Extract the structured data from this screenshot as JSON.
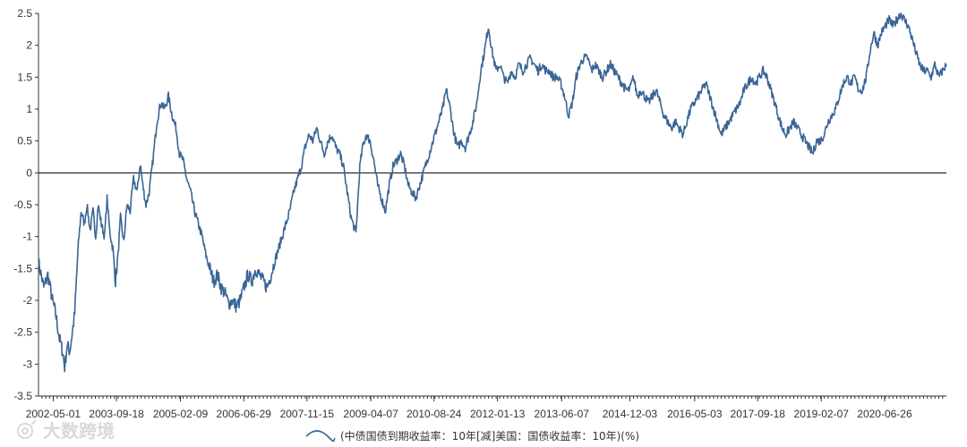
{
  "watermark": "大数跨境",
  "chart_data": {
    "type": "line",
    "title": "",
    "xlabel": "",
    "ylabel": "",
    "ylim": [
      -3.5,
      2.5
    ],
    "y_ticks": [
      "2.5",
      "2",
      "1.5",
      "1",
      "0.5",
      "0",
      "-0.5",
      "-1",
      "-1.5",
      "-2",
      "-2.5",
      "-3",
      "-3.5"
    ],
    "x_ticks": [
      "2002-05-01",
      "2003-09-18",
      "2005-02-09",
      "2006-06-29",
      "2007-11-15",
      "2009-04-07",
      "2010-08-24",
      "2012-01-13",
      "2013-06-07",
      "2014-12-03",
      "2016-05-03",
      "2017-09-18",
      "2019-02-07",
      "2020-06-26"
    ],
    "grid": false,
    "legend": "bottom",
    "zero_line": true,
    "colors": {
      "series": "#3a6595",
      "axis": "#333333"
    },
    "series": [
      {
        "name": "(中债国债到期收益率：10年[减]美国：国债收益率：10年)(%)",
        "points": [
          [
            "2002-01-04",
            -1.4
          ],
          [
            "2002-02-15",
            -1.8
          ],
          [
            "2002-03-20",
            -1.6
          ],
          [
            "2002-04-25",
            -2.0
          ],
          [
            "2002-05-20",
            -2.2
          ],
          [
            "2002-06-20",
            -2.6
          ],
          [
            "2002-07-15",
            -2.8
          ],
          [
            "2002-08-01",
            -3.05
          ],
          [
            "2002-08-20",
            -2.7
          ],
          [
            "2002-09-10",
            -2.8
          ],
          [
            "2002-10-01",
            -2.5
          ],
          [
            "2002-10-20",
            -2.2
          ],
          [
            "2002-11-15",
            -1.2
          ],
          [
            "2002-12-10",
            -0.6
          ],
          [
            "2003-01-05",
            -0.8
          ],
          [
            "2003-01-25",
            -0.5
          ],
          [
            "2003-02-20",
            -0.9
          ],
          [
            "2003-03-15",
            -0.6
          ],
          [
            "2003-04-05",
            -1.0
          ],
          [
            "2003-04-25",
            -0.5
          ],
          [
            "2003-05-20",
            -0.8
          ],
          [
            "2003-06-15",
            -1.0
          ],
          [
            "2003-07-05",
            -0.4
          ],
          [
            "2003-07-25",
            -0.9
          ],
          [
            "2003-08-20",
            -1.2
          ],
          [
            "2003-09-10",
            -1.7
          ],
          [
            "2003-09-30",
            -1.3
          ],
          [
            "2003-10-20",
            -0.7
          ],
          [
            "2003-11-15",
            -1.1
          ],
          [
            "2003-12-10",
            -0.5
          ],
          [
            "2004-01-05",
            -0.6
          ],
          [
            "2004-02-01",
            -0.1
          ],
          [
            "2004-03-01",
            -0.3
          ],
          [
            "2004-03-25",
            0.15
          ],
          [
            "2004-04-15",
            -0.2
          ],
          [
            "2004-05-10",
            -0.5
          ],
          [
            "2004-06-05",
            -0.3
          ],
          [
            "2004-07-05",
            0.2
          ],
          [
            "2004-08-05",
            0.8
          ],
          [
            "2004-09-05",
            1.1
          ],
          [
            "2004-10-05",
            1.0
          ],
          [
            "2004-11-05",
            1.2
          ],
          [
            "2004-12-05",
            0.9
          ],
          [
            "2005-01-05",
            0.7
          ],
          [
            "2005-02-01",
            0.3
          ],
          [
            "2005-03-01",
            0.2
          ],
          [
            "2005-04-01",
            -0.1
          ],
          [
            "2005-05-01",
            -0.3
          ],
          [
            "2005-06-01",
            -0.6
          ],
          [
            "2005-07-01",
            -0.8
          ],
          [
            "2005-08-01",
            -1.0
          ],
          [
            "2005-09-01",
            -1.3
          ],
          [
            "2005-10-01",
            -1.5
          ],
          [
            "2005-11-01",
            -1.7
          ],
          [
            "2005-12-01",
            -1.6
          ],
          [
            "2006-01-01",
            -1.8
          ],
          [
            "2006-02-01",
            -1.9
          ],
          [
            "2006-03-01",
            -2.05
          ],
          [
            "2006-04-01",
            -2.0
          ],
          [
            "2006-05-01",
            -2.1
          ],
          [
            "2006-06-01",
            -2.0
          ],
          [
            "2006-07-01",
            -1.8
          ],
          [
            "2006-08-01",
            -1.6
          ],
          [
            "2006-09-01",
            -1.7
          ],
          [
            "2006-10-01",
            -1.5
          ],
          [
            "2006-11-01",
            -1.6
          ],
          [
            "2006-12-01",
            -1.7
          ],
          [
            "2007-01-01",
            -1.8
          ],
          [
            "2007-02-01",
            -1.6
          ],
          [
            "2007-03-01",
            -1.4
          ],
          [
            "2007-04-01",
            -1.2
          ],
          [
            "2007-05-01",
            -1.0
          ],
          [
            "2007-06-01",
            -0.8
          ],
          [
            "2007-07-01",
            -0.6
          ],
          [
            "2007-08-01",
            -0.3
          ],
          [
            "2007-09-01",
            -0.1
          ],
          [
            "2007-10-01",
            0.1
          ],
          [
            "2007-11-01",
            0.4
          ],
          [
            "2007-12-01",
            0.6
          ],
          [
            "2008-01-01",
            0.5
          ],
          [
            "2008-02-01",
            0.7
          ],
          [
            "2008-03-01",
            0.5
          ],
          [
            "2008-04-01",
            0.3
          ],
          [
            "2008-05-01",
            0.5
          ],
          [
            "2008-06-01",
            0.6
          ],
          [
            "2008-07-01",
            0.4
          ],
          [
            "2008-08-01",
            0.3
          ],
          [
            "2008-09-01",
            0.1
          ],
          [
            "2008-10-01",
            -0.3
          ],
          [
            "2008-11-01",
            -0.7
          ],
          [
            "2008-12-10",
            -0.95
          ],
          [
            "2009-01-10",
            0.1
          ],
          [
            "2009-02-01",
            0.4
          ],
          [
            "2009-03-01",
            0.6
          ],
          [
            "2009-04-01",
            0.5
          ],
          [
            "2009-05-01",
            0.2
          ],
          [
            "2009-06-01",
            -0.2
          ],
          [
            "2009-07-01",
            -0.4
          ],
          [
            "2009-08-01",
            -0.6
          ],
          [
            "2009-09-01",
            -0.2
          ],
          [
            "2009-10-01",
            0.1
          ],
          [
            "2009-11-01",
            0.2
          ],
          [
            "2009-12-01",
            0.3
          ],
          [
            "2010-01-01",
            0.1
          ],
          [
            "2010-02-01",
            -0.2
          ],
          [
            "2010-03-01",
            -0.3
          ],
          [
            "2010-04-01",
            -0.4
          ],
          [
            "2010-05-01",
            -0.2
          ],
          [
            "2010-06-01",
            0.0
          ],
          [
            "2010-07-01",
            0.2
          ],
          [
            "2010-08-01",
            0.4
          ],
          [
            "2010-09-01",
            0.6
          ],
          [
            "2010-10-01",
            0.8
          ],
          [
            "2010-11-01",
            1.0
          ],
          [
            "2010-12-01",
            1.3
          ],
          [
            "2011-01-01",
            1.0
          ],
          [
            "2011-02-01",
            0.6
          ],
          [
            "2011-03-01",
            0.4
          ],
          [
            "2011-04-01",
            0.5
          ],
          [
            "2011-05-01",
            0.4
          ],
          [
            "2011-06-01",
            0.6
          ],
          [
            "2011-07-01",
            0.8
          ],
          [
            "2011-08-01",
            1.1
          ],
          [
            "2011-09-01",
            1.6
          ],
          [
            "2011-10-01",
            1.9
          ],
          [
            "2011-11-01",
            2.3
          ],
          [
            "2011-12-01",
            1.9
          ],
          [
            "2012-01-01",
            1.6
          ],
          [
            "2012-02-01",
            1.7
          ],
          [
            "2012-03-01",
            1.5
          ],
          [
            "2012-04-01",
            1.4
          ],
          [
            "2012-05-01",
            1.6
          ],
          [
            "2012-06-01",
            1.5
          ],
          [
            "2012-07-01",
            1.7
          ],
          [
            "2012-08-01",
            1.6
          ],
          [
            "2012-09-01",
            1.7
          ],
          [
            "2012-10-01",
            1.8
          ],
          [
            "2012-11-01",
            1.7
          ],
          [
            "2012-12-01",
            1.6
          ],
          [
            "2013-01-01",
            1.7
          ],
          [
            "2013-02-01",
            1.6
          ],
          [
            "2013-03-01",
            1.6
          ],
          [
            "2013-04-01",
            1.5
          ],
          [
            "2013-05-01",
            1.5
          ],
          [
            "2013-06-01",
            1.4
          ],
          [
            "2013-07-01",
            1.2
          ],
          [
            "2013-08-01",
            0.9
          ],
          [
            "2013-09-01",
            1.1
          ],
          [
            "2013-10-01",
            1.5
          ],
          [
            "2013-11-01",
            1.7
          ],
          [
            "2013-12-01",
            1.8
          ],
          [
            "2014-01-01",
            1.8
          ],
          [
            "2014-02-01",
            1.6
          ],
          [
            "2014-03-01",
            1.7
          ],
          [
            "2014-04-01",
            1.6
          ],
          [
            "2014-05-01",
            1.5
          ],
          [
            "2014-06-01",
            1.6
          ],
          [
            "2014-07-01",
            1.7
          ],
          [
            "2014-08-01",
            1.6
          ],
          [
            "2014-09-01",
            1.5
          ],
          [
            "2014-10-01",
            1.4
          ],
          [
            "2014-11-01",
            1.3
          ],
          [
            "2014-12-01",
            1.3
          ],
          [
            "2015-01-01",
            1.5
          ],
          [
            "2015-02-01",
            1.2
          ],
          [
            "2015-03-01",
            1.3
          ],
          [
            "2015-04-01",
            1.2
          ],
          [
            "2015-05-01",
            1.1
          ],
          [
            "2015-06-01",
            1.2
          ],
          [
            "2015-07-01",
            1.3
          ],
          [
            "2015-08-01",
            1.1
          ],
          [
            "2015-09-01",
            0.9
          ],
          [
            "2015-10-01",
            0.8
          ],
          [
            "2015-11-01",
            0.7
          ],
          [
            "2015-12-01",
            0.8
          ],
          [
            "2016-01-01",
            0.7
          ],
          [
            "2016-02-01",
            0.6
          ],
          [
            "2016-03-01",
            0.8
          ],
          [
            "2016-04-01",
            1.0
          ],
          [
            "2016-05-01",
            1.1
          ],
          [
            "2016-06-01",
            1.2
          ],
          [
            "2016-07-01",
            1.3
          ],
          [
            "2016-08-01",
            1.4
          ],
          [
            "2016-09-01",
            1.2
          ],
          [
            "2016-10-01",
            1.0
          ],
          [
            "2016-11-01",
            0.8
          ],
          [
            "2016-12-01",
            0.6
          ],
          [
            "2017-01-01",
            0.7
          ],
          [
            "2017-02-01",
            0.8
          ],
          [
            "2017-03-01",
            0.9
          ],
          [
            "2017-04-01",
            1.0
          ],
          [
            "2017-05-01",
            1.1
          ],
          [
            "2017-06-01",
            1.3
          ],
          [
            "2017-07-01",
            1.4
          ],
          [
            "2017-08-01",
            1.5
          ],
          [
            "2017-09-01",
            1.4
          ],
          [
            "2017-10-01",
            1.5
          ],
          [
            "2017-11-01",
            1.6
          ],
          [
            "2017-12-01",
            1.5
          ],
          [
            "2018-01-01",
            1.3
          ],
          [
            "2018-02-01",
            1.1
          ],
          [
            "2018-03-01",
            0.9
          ],
          [
            "2018-04-01",
            0.7
          ],
          [
            "2018-05-01",
            0.6
          ],
          [
            "2018-06-01",
            0.7
          ],
          [
            "2018-07-01",
            0.8
          ],
          [
            "2018-08-01",
            0.7
          ],
          [
            "2018-09-01",
            0.6
          ],
          [
            "2018-10-01",
            0.5
          ],
          [
            "2018-11-01",
            0.4
          ],
          [
            "2018-12-01",
            0.3
          ],
          [
            "2019-01-01",
            0.5
          ],
          [
            "2019-02-01",
            0.5
          ],
          [
            "2019-03-01",
            0.6
          ],
          [
            "2019-04-01",
            0.8
          ],
          [
            "2019-05-01",
            0.9
          ],
          [
            "2019-06-01",
            1.0
          ],
          [
            "2019-07-01",
            1.2
          ],
          [
            "2019-08-01",
            1.4
          ],
          [
            "2019-09-01",
            1.5
          ],
          [
            "2019-10-01",
            1.4
          ],
          [
            "2019-11-01",
            1.5
          ],
          [
            "2019-12-01",
            1.3
          ],
          [
            "2020-01-01",
            1.3
          ],
          [
            "2020-02-01",
            1.5
          ],
          [
            "2020-03-01",
            1.9
          ],
          [
            "2020-04-01",
            2.2
          ],
          [
            "2020-05-01",
            2.0
          ],
          [
            "2020-06-01",
            2.2
          ],
          [
            "2020-07-01",
            2.3
          ],
          [
            "2020-08-01",
            2.4
          ],
          [
            "2020-09-01",
            2.3
          ],
          [
            "2020-10-01",
            2.4
          ],
          [
            "2020-11-01",
            2.5
          ],
          [
            "2020-12-01",
            2.4
          ],
          [
            "2021-01-01",
            2.3
          ],
          [
            "2021-02-01",
            2.1
          ],
          [
            "2021-03-01",
            1.9
          ],
          [
            "2021-04-01",
            1.7
          ],
          [
            "2021-05-01",
            1.6
          ],
          [
            "2021-06-01",
            1.6
          ],
          [
            "2021-07-01",
            1.5
          ],
          [
            "2021-08-01",
            1.7
          ],
          [
            "2021-09-01",
            1.5
          ],
          [
            "2021-10-01",
            1.6
          ],
          [
            "2021-11-01",
            1.7
          ]
        ]
      }
    ]
  }
}
